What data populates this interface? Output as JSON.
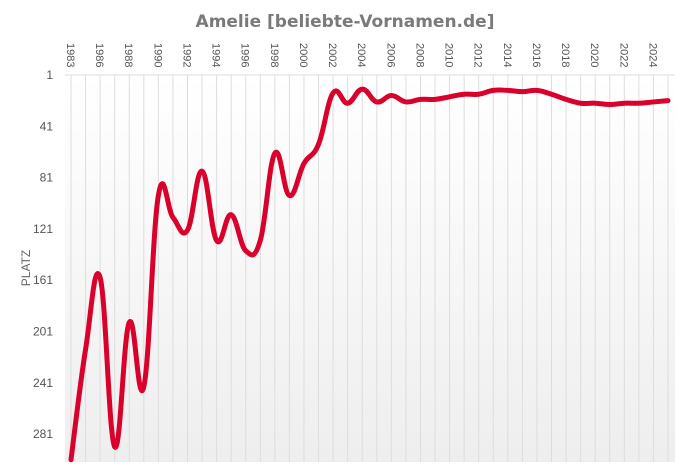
{
  "chart_data": {
    "type": "line",
    "title": "Amelie [beliebte-Vornamen.de]",
    "xlabel": "",
    "ylabel": "PLATZ",
    "y_inverted": true,
    "ylim": [
      1,
      301
    ],
    "yticks": [
      1,
      41,
      81,
      121,
      161,
      201,
      241,
      281
    ],
    "grid": {
      "vertical": true,
      "horizontal": false
    },
    "legend": null,
    "x_tick_labels": [
      "1983",
      "1986",
      "1988",
      "1990",
      "1992",
      "1994",
      "1996",
      "1998",
      "2000",
      "2002",
      "2004",
      "2006",
      "2008",
      "2010",
      "2012",
      "2014",
      "2016",
      "2018",
      "2020",
      "2022",
      "2024"
    ],
    "categories": [
      "1983",
      "1985",
      "1986",
      "1987",
      "1988",
      "1989",
      "1990",
      "1991",
      "1992",
      "1993",
      "1994",
      "1995",
      "1996",
      "1997",
      "1998",
      "1999",
      "2000",
      "2001",
      "2002",
      "2003",
      "2004",
      "2005",
      "2006",
      "2007",
      "2008",
      "2009",
      "2010",
      "2011",
      "2012",
      "2013",
      "2014",
      "2015",
      "2016",
      "2017",
      "2018",
      "2019",
      "2020",
      "2021",
      "2022",
      "2023",
      "2024",
      "2025"
    ],
    "series": [
      {
        "name": "Amelie",
        "color": "#d9002b",
        "values": [
          301,
          215,
          159,
          291,
          194,
          244,
          95,
          112,
          122,
          76,
          130,
          110,
          138,
          130,
          62,
          95,
          70,
          55,
          15,
          23,
          12,
          22,
          17,
          22,
          20,
          20,
          18,
          16,
          16,
          13,
          13,
          14,
          13,
          16,
          20,
          23,
          23,
          24,
          23,
          23,
          22,
          21
        ]
      }
    ]
  },
  "colors": {
    "line": "#d9002b",
    "title": "#7a7a7a",
    "grid": "#dddddd",
    "background_top": "#ffffff",
    "background_bottom": "#efefef"
  }
}
